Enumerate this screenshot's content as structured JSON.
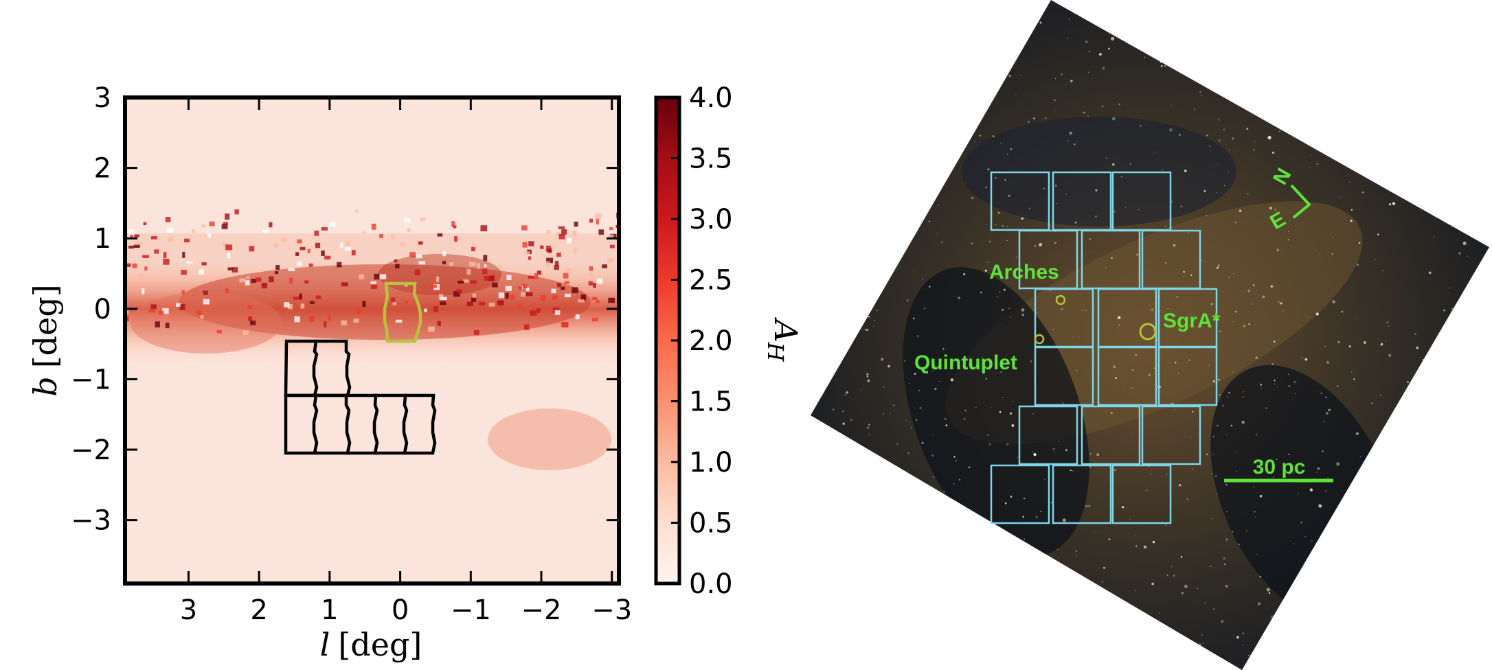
{
  "left_panel": {
    "x_axis_label_symbol": "l",
    "x_axis_label_unit": "[deg]",
    "y_axis_label_symbol": "b",
    "y_axis_label_unit": "[deg]",
    "x_ticks": [
      {
        "value": 3,
        "label": "3"
      },
      {
        "value": 2,
        "label": "2"
      },
      {
        "value": 1,
        "label": "1"
      },
      {
        "value": 0,
        "label": "0"
      },
      {
        "value": -1,
        "label": "−1"
      },
      {
        "value": -2,
        "label": "−2"
      },
      {
        "value": -3,
        "label": "−3"
      }
    ],
    "y_ticks": [
      {
        "value": 3,
        "label": "3"
      },
      {
        "value": 2,
        "label": "2"
      },
      {
        "value": 1,
        "label": "1"
      },
      {
        "value": 0,
        "label": "0"
      },
      {
        "value": -1,
        "label": "−1"
      },
      {
        "value": -2,
        "label": "−2"
      },
      {
        "value": -3,
        "label": "−3"
      }
    ],
    "x_range": [
      3.9,
      -3.1
    ],
    "y_range": [
      -3.9,
      3.0
    ],
    "colormap": "Reds",
    "colors": {
      "low": "#fff5f0",
      "mid": "#ef6548",
      "high": "#67000d",
      "outline_black": "#000000",
      "outline_yellow": "#b8c23a"
    },
    "colorbar": {
      "label": "A_H",
      "label_symbol": "A",
      "label_subscript": "H",
      "range": [
        0.0,
        4.0
      ],
      "ticks": [
        "0.0",
        "0.5",
        "1.0",
        "1.5",
        "2.0",
        "2.5",
        "3.0",
        "3.5",
        "4.0"
      ]
    }
  },
  "right_panel": {
    "annotations": {
      "arches": "Arches",
      "quintuplet": "Quintuplet",
      "sgra": "SgrA*",
      "scale_bar": "30 pc",
      "compass_north": "N",
      "compass_east": "E"
    },
    "colors": {
      "annotation_green": "#5de33a",
      "field_cyan": "#7fd6e6",
      "sky_dark": "#141a24",
      "sky_dust": "#4a3a24"
    }
  }
}
